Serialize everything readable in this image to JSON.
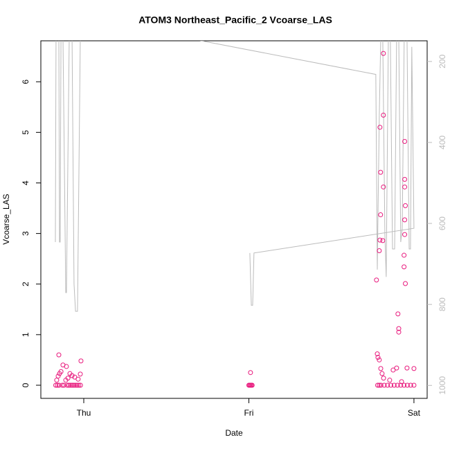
{
  "chart_data": {
    "type": "scatter",
    "title": "ATOM3 Northeast_Pacific_2 Vcoarse_LAS",
    "x_label": "Date",
    "y_label": "Vcoarse_LAS",
    "xlim": [
      -0.26,
      2.08
    ],
    "xticks": [
      {
        "value": 0,
        "label": "Thu"
      },
      {
        "value": 1,
        "label": "Fri"
      },
      {
        "value": 2,
        "label": "Sat"
      }
    ],
    "ylim": [
      -0.26,
      6.81
    ],
    "yticks": [
      0,
      1,
      2,
      3,
      4,
      5,
      6
    ],
    "y2lim": [
      1032,
      149
    ],
    "y2ticks": [
      200,
      400,
      600,
      800,
      1000
    ],
    "y2_color": "#bbbbbb",
    "series": [
      {
        "type": "line",
        "axis": "y2",
        "color": "#bbbbbb",
        "x": [
          -0.172,
          -0.168,
          -0.151,
          -0.147,
          -0.143,
          -0.138,
          -0.126,
          -0.109,
          -0.105,
          -0.088,
          -0.071,
          -0.059,
          -0.05,
          -0.038,
          -0.021,
          -0.013,
          1.769,
          1.778,
          1.79,
          1.799,
          1.811,
          1.824,
          1.832,
          1.845,
          1.857,
          1.87,
          1.883,
          1.895,
          1.908,
          1.92,
          1.929,
          1.941,
          1.958,
          1.971,
          1.979,
          1.987,
          2.0,
          1.031,
          1.023,
          1.015,
          1.006
        ],
        "values": [
          646,
          140,
          140,
          646,
          646,
          140,
          140,
          771,
          771,
          140,
          140,
          749,
          817,
          817,
          140,
          92,
          232,
          714,
          335,
          140,
          140,
          629,
          732,
          140,
          140,
          663,
          663,
          140,
          140,
          646,
          612,
          140,
          140,
          663,
          663,
          164,
          612,
          673,
          802,
          802,
          673
        ]
      },
      {
        "type": "scatter",
        "color": "#e8187c",
        "x": [
          -0.151,
          -0.126,
          -0.105,
          -0.017,
          -0.147,
          -0.138,
          -0.084,
          -0.071,
          -0.055,
          -0.034,
          -0.164,
          -0.109,
          -0.155,
          -0.096,
          -0.021,
          -0.17,
          -0.16,
          -0.15,
          -0.13,
          -0.12,
          -0.1,
          -0.09,
          -0.08,
          -0.07,
          -0.06,
          -0.05,
          -0.04,
          -0.03,
          -0.02,
          1.01,
          1.0,
          1.005,
          1.01,
          1.015,
          1.02,
          1.778,
          1.782,
          1.79,
          1.799,
          1.807,
          1.816,
          1.895,
          1.874,
          1.958,
          2.0,
          1.853,
          1.925,
          1.78,
          1.79,
          1.8,
          1.82,
          1.84,
          1.86,
          1.88,
          1.9,
          1.92,
          1.94,
          1.96,
          1.98,
          2.0,
          1.815,
          1.815,
          1.794,
          1.798,
          1.815,
          1.944,
          1.944,
          1.944,
          1.948,
          1.798,
          1.944,
          1.944,
          1.794,
          1.811,
          1.79,
          1.94,
          1.94,
          1.773,
          1.948,
          1.903,
          1.908,
          1.908
        ],
        "values": [
          0.6,
          0.4,
          0.37,
          0.48,
          0.23,
          0.27,
          0.23,
          0.19,
          0.16,
          0.12,
          0.1,
          0.1,
          0.18,
          0.14,
          0.22,
          0,
          0,
          0,
          0,
          0,
          0,
          0,
          0,
          0,
          0,
          0,
          0,
          0,
          0,
          0.25,
          0,
          0,
          0,
          0,
          0,
          0.62,
          0.55,
          0.5,
          0.33,
          0.23,
          0.14,
          0.34,
          0.3,
          0.34,
          0.33,
          0.1,
          0.07,
          0,
          0,
          0,
          0,
          0,
          0,
          0,
          0,
          0,
          0,
          0,
          0,
          0,
          6.56,
          5.34,
          5.1,
          4.21,
          3.92,
          4.82,
          4.07,
          3.92,
          3.55,
          3.37,
          3.27,
          2.98,
          2.87,
          2.86,
          2.66,
          2.57,
          2.34,
          2.08,
          2.01,
          1.41,
          1.12,
          1.05
        ]
      }
    ]
  }
}
